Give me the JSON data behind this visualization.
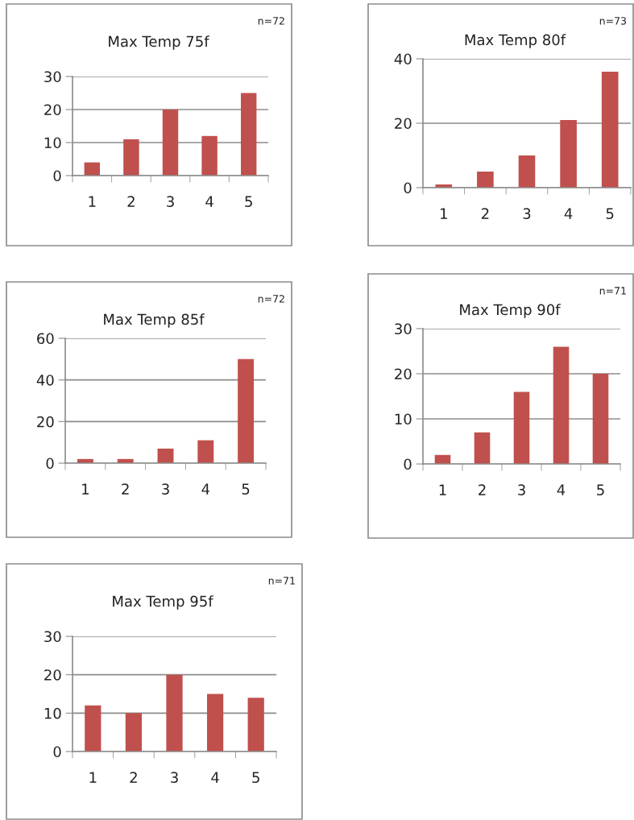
{
  "chart_data": [
    {
      "type": "bar",
      "title": "Max Temp 75f",
      "annotations": [
        "n=72"
      ],
      "categories": [
        "1",
        "2",
        "3",
        "4",
        "5"
      ],
      "values": [
        4,
        11,
        20,
        12,
        25
      ],
      "color": "#c0504d",
      "ylim": [
        0,
        30
      ],
      "yticks": [
        0,
        10,
        20,
        30
      ],
      "grid": "y"
    },
    {
      "type": "bar",
      "title": "Max Temp 80f",
      "annotations": [
        "n=73"
      ],
      "categories": [
        "1",
        "2",
        "3",
        "4",
        "5"
      ],
      "values": [
        1,
        5,
        10,
        21,
        36
      ],
      "color": "#c0504d",
      "ylim": [
        0,
        40
      ],
      "yticks": [
        0,
        20,
        40
      ],
      "grid": "y"
    },
    {
      "type": "bar",
      "title": "Max Temp 85f",
      "annotations": [
        "n=72"
      ],
      "categories": [
        "1",
        "2",
        "3",
        "4",
        "5"
      ],
      "values": [
        2,
        2,
        7,
        11,
        50
      ],
      "color": "#c0504d",
      "ylim": [
        0,
        60
      ],
      "yticks": [
        0,
        20,
        40,
        60
      ],
      "grid": "y"
    },
    {
      "type": "bar",
      "title": "Max Temp 90f",
      "annotations": [
        "n=71"
      ],
      "categories": [
        "1",
        "2",
        "3",
        "4",
        "5"
      ],
      "values": [
        2,
        7,
        16,
        26,
        20
      ],
      "color": "#c0504d",
      "ylim": [
        0,
        30
      ],
      "yticks": [
        0,
        10,
        20,
        30
      ],
      "grid": "y"
    },
    {
      "type": "bar",
      "title": "Max Temp 95f",
      "annotations": [
        "n=71"
      ],
      "categories": [
        "1",
        "2",
        "3",
        "4",
        "5"
      ],
      "values": [
        12,
        10,
        20,
        15,
        14
      ],
      "color": "#c0504d",
      "ylim": [
        0,
        30
      ],
      "yticks": [
        0,
        10,
        20,
        30
      ],
      "grid": "y"
    }
  ]
}
